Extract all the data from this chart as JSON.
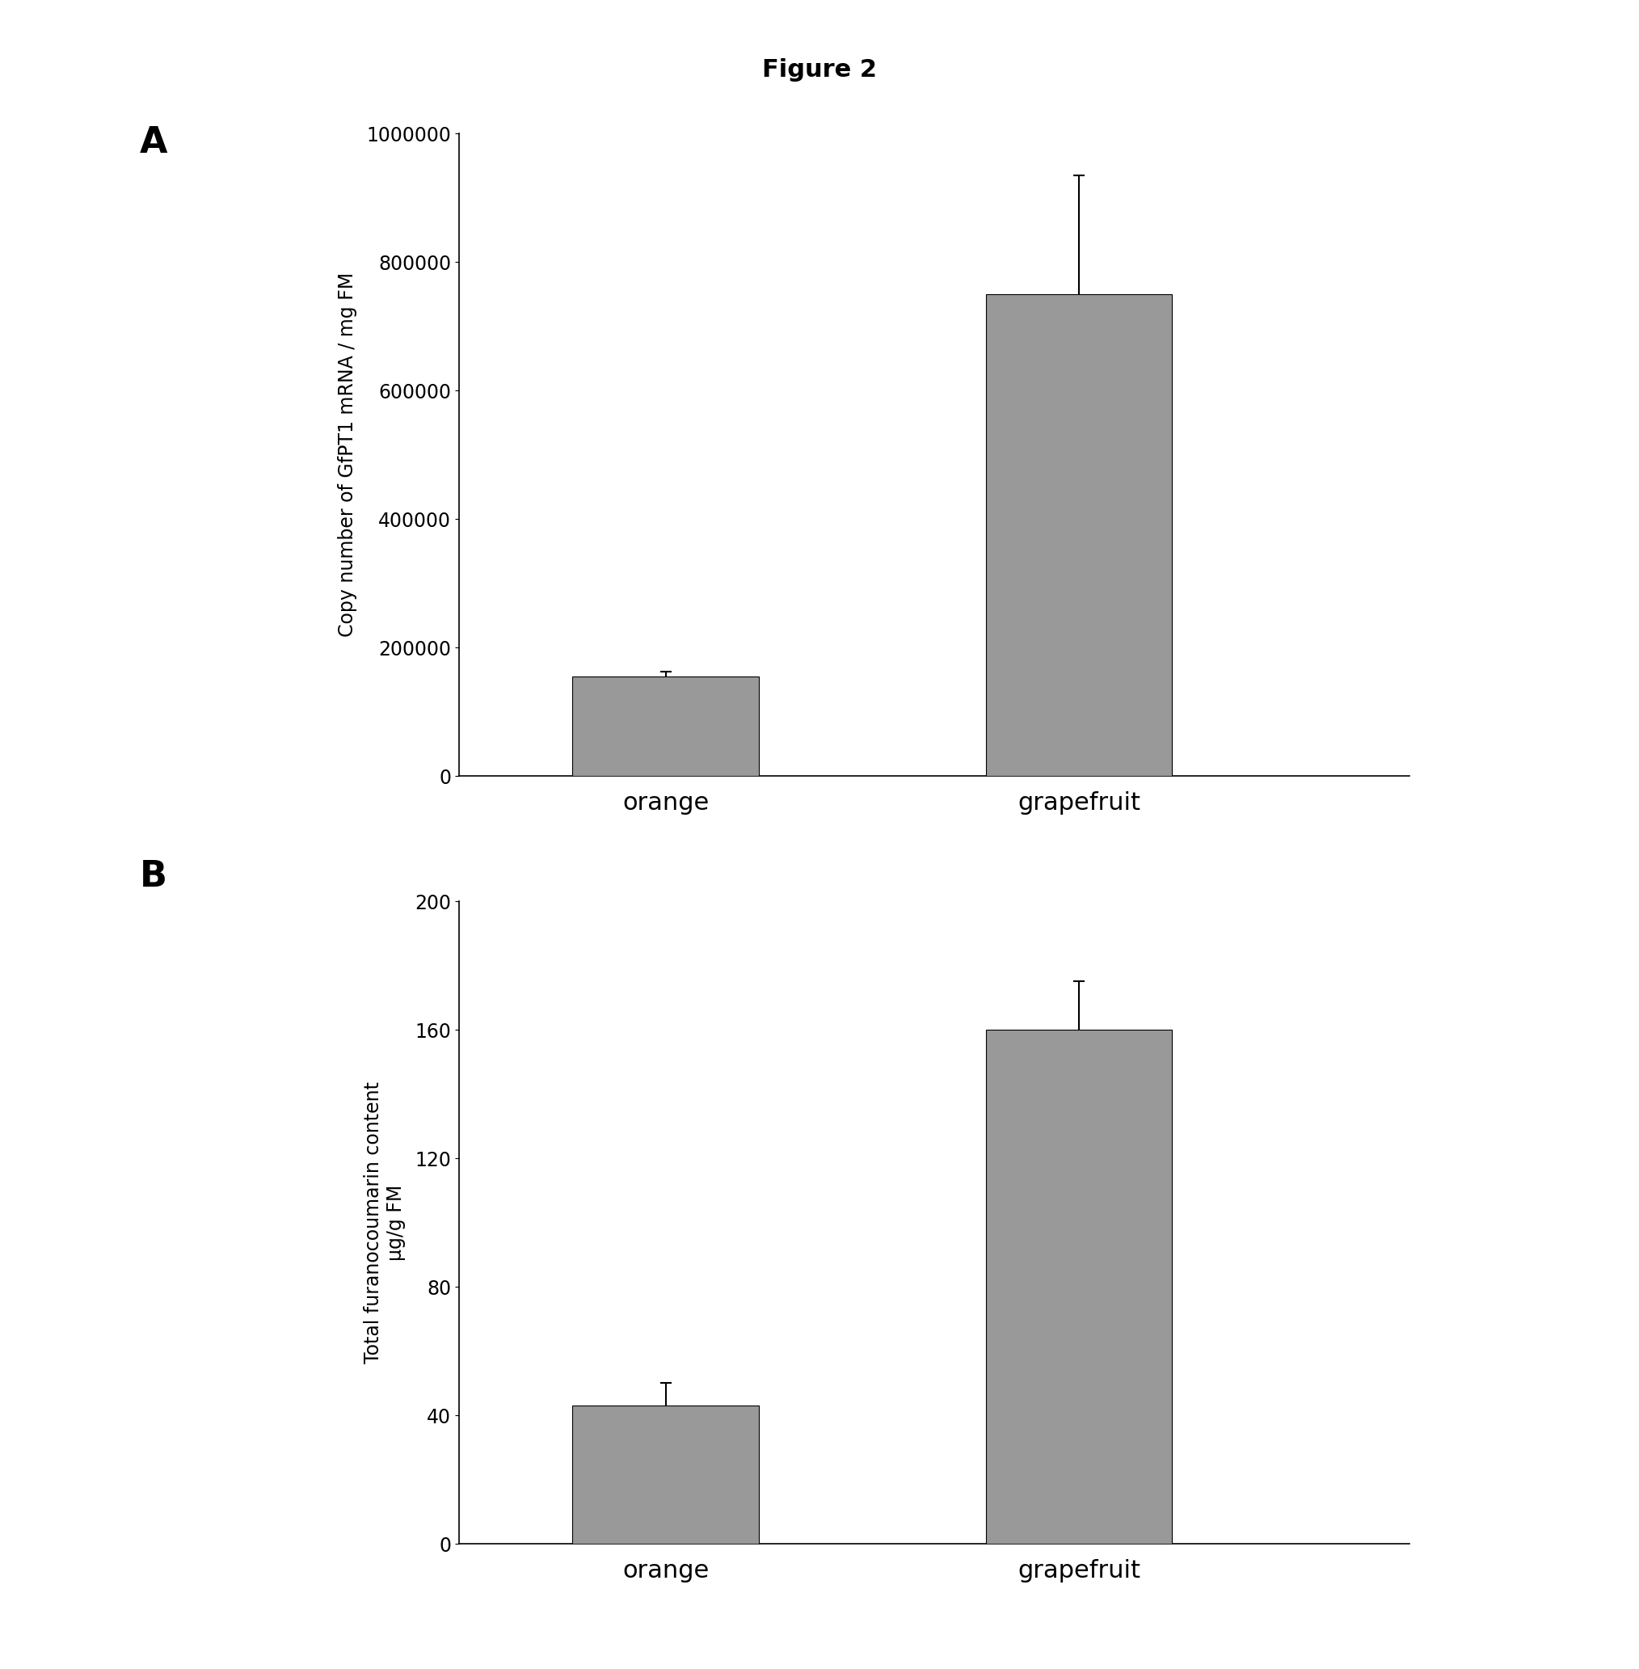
{
  "title": "Figure 2",
  "panel_A": {
    "label": "A",
    "categories": [
      "orange",
      "grapefruit"
    ],
    "values": [
      155000,
      750000
    ],
    "errors": [
      8000,
      185000
    ],
    "ylabel": "Copy number of GfPT1 mRNA / mg FM",
    "ylim": [
      0,
      1000000
    ],
    "yticks": [
      0,
      200000,
      400000,
      600000,
      800000,
      1000000
    ],
    "ytick_labels": [
      "0",
      "200000",
      "400000",
      "600000",
      "800000",
      "1000000"
    ]
  },
  "panel_B": {
    "label": "B",
    "categories": [
      "orange",
      "grapefruit"
    ],
    "values": [
      43,
      160
    ],
    "errors": [
      7,
      15
    ],
    "ylabel": "Total furanocoumarin content\nμg/g FM",
    "ylim": [
      0,
      200
    ],
    "yticks": [
      0,
      40,
      80,
      120,
      160,
      200
    ],
    "ytick_labels": [
      "0",
      "40",
      "80",
      "120",
      "160",
      "200"
    ]
  },
  "background_color": "#ffffff",
  "bar_color": "#999999",
  "label_fontsize": 32,
  "tick_fontsize": 17,
  "axis_label_fontsize": 17,
  "title_fontsize": 22,
  "cat_fontsize": 22
}
